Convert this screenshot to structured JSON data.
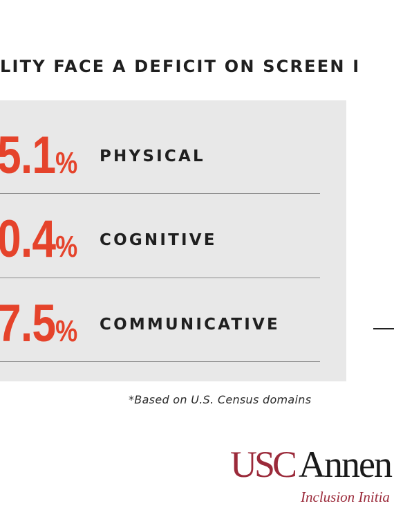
{
  "headline": "LITY FACE A DEFICIT ON SCREEN I",
  "rows": [
    {
      "number": "5.1",
      "sign": "%",
      "label": "PHYSICAL"
    },
    {
      "number": "0.4",
      "sign": "%",
      "label": "COGNITIVE"
    },
    {
      "number": "7.5",
      "sign": "%",
      "label": "COMMUNICATIVE"
    }
  ],
  "footnote": "*Based on U.S. Census domains",
  "logo": {
    "part1": "USC",
    "part2": "Annen",
    "subtitle": "Inclusion Initia"
  },
  "colors": {
    "accent": "#e5432b",
    "brand": "#9b2a3a",
    "panel": "#e8e8e8",
    "text": "#1f1f1f"
  }
}
